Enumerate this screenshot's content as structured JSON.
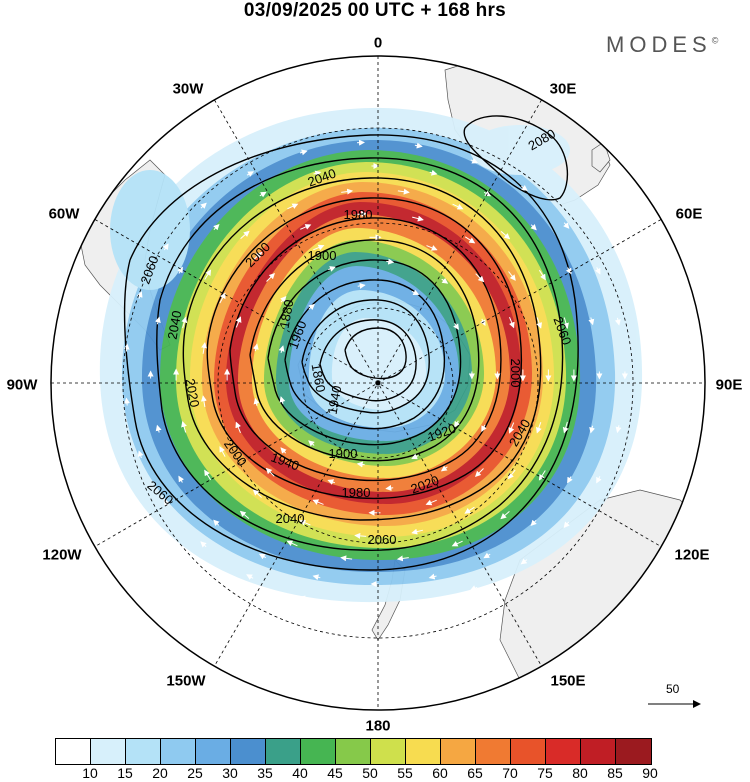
{
  "title": "03/09/2025  00 UTC  + 168 hrs",
  "brand": "MODES",
  "brand_mark": "©",
  "longitude_labels": [
    "0",
    "30E",
    "60E",
    "90E",
    "120E",
    "150E",
    "180",
    "150W",
    "120W",
    "90W",
    "60W",
    "30W"
  ],
  "contours": {
    "levels": [
      "1860",
      "1880",
      "1900",
      "1920",
      "1940",
      "1960",
      "1980",
      "2000",
      "2020",
      "2040",
      "2060",
      "2080"
    ],
    "labels": [
      {
        "text": "2040"
      },
      {
        "text": "2060"
      },
      {
        "text": "2040"
      },
      {
        "text": "2020"
      },
      {
        "text": "2060"
      },
      {
        "text": "2080"
      },
      {
        "text": "1980"
      },
      {
        "text": "2000"
      },
      {
        "text": "1900"
      },
      {
        "text": "1880"
      },
      {
        "text": "1960"
      },
      {
        "text": "1860"
      },
      {
        "text": "1940"
      },
      {
        "text": "1920"
      },
      {
        "text": "1900"
      },
      {
        "text": "1940"
      },
      {
        "text": "1980"
      },
      {
        "text": "2020"
      },
      {
        "text": "2040"
      },
      {
        "text": "2060"
      },
      {
        "text": "2000"
      },
      {
        "text": "2060"
      },
      {
        "text": "2000"
      },
      {
        "text": "2040"
      }
    ]
  },
  "wind_speed_legend": {
    "ticks": [
      "10",
      "15",
      "20",
      "25",
      "30",
      "35",
      "40",
      "45",
      "50",
      "55",
      "60",
      "65",
      "70",
      "75",
      "80",
      "85",
      "90"
    ],
    "colors": [
      "#ffffff",
      "#d7f0fb",
      "#b4e2f7",
      "#8fcaf0",
      "#6aade4",
      "#4b8fcf",
      "#3aa089",
      "#46b552",
      "#86c94a",
      "#cfe04c",
      "#f7dc50",
      "#f5a742",
      "#f07a32",
      "#e8532a",
      "#d92b28",
      "#c01e25",
      "#9b1a1f"
    ]
  },
  "reference_vector": "50"
}
